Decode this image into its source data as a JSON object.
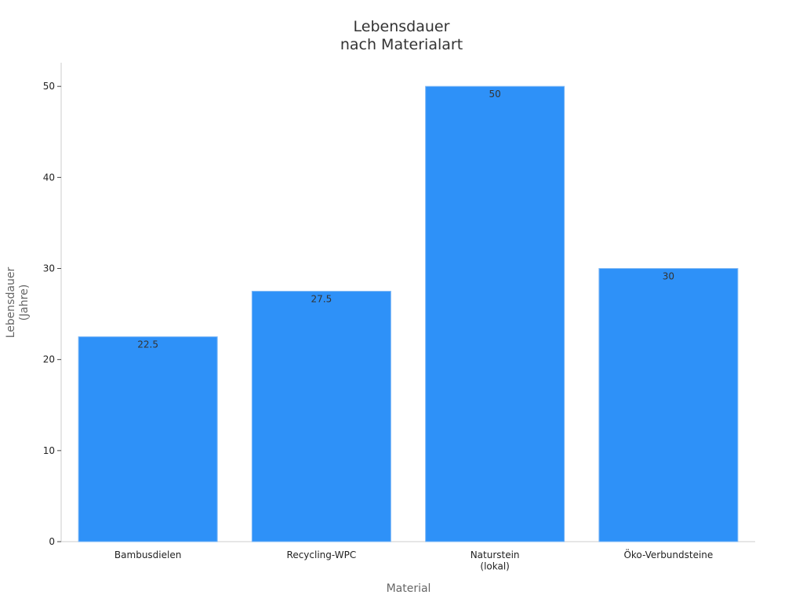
{
  "chart_data": {
    "type": "bar",
    "title": "Lebensdauer\nnach Materialart",
    "x_label": "Material",
    "y_label": "Lebensdauer\n(Jahre)",
    "categories": [
      "Bambusdielen",
      "Recycling-WPC",
      "Naturstein\n(lokal)",
      "Öko-Verbundsteine"
    ],
    "values": [
      22.5,
      27.5,
      50,
      30
    ],
    "color": "#2e91f8",
    "ylim": [
      0,
      52.6
    ],
    "yticks": [
      0,
      10,
      20,
      30,
      40,
      50
    ],
    "grid": false
  }
}
